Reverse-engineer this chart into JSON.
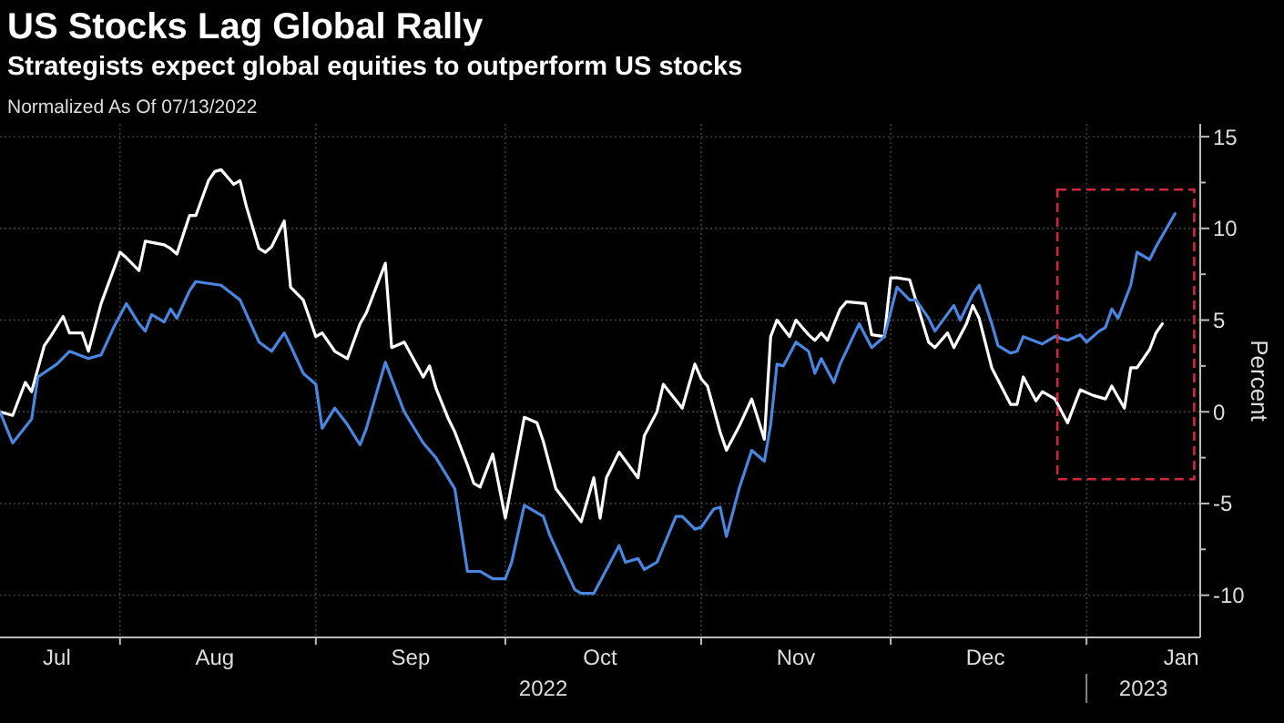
{
  "chart_data": {
    "type": "line",
    "title": "US Stocks Lag Global Rally",
    "subtitle": "Strategists expect global equities to outperform US stocks",
    "ylabel": "Percent",
    "annotations": [
      "Normalized As Of 07/13/2022",
      "2022",
      "2023"
    ],
    "xlim": [
      "2022-07-13",
      "2023-01-19"
    ],
    "xticks": [
      {
        "value": "2022-07-22",
        "label": "Jul"
      },
      {
        "value": "2022-08-01",
        "label": null
      },
      {
        "value": "2022-08-16",
        "label": "Aug"
      },
      {
        "value": "2022-09-01",
        "label": null
      },
      {
        "value": "2022-09-16",
        "label": "Sep"
      },
      {
        "value": "2022-10-01",
        "label": null
      },
      {
        "value": "2022-10-16",
        "label": "Oct"
      },
      {
        "value": "2022-11-01",
        "label": null
      },
      {
        "value": "2022-11-16",
        "label": "Nov"
      },
      {
        "value": "2022-12-01",
        "label": null
      },
      {
        "value": "2022-12-16",
        "label": "Dec"
      },
      {
        "value": "2023-01-01",
        "label": null
      },
      {
        "value": "2023-01-16",
        "label": "Jan"
      }
    ],
    "ylim": [
      -12.3,
      15.7
    ],
    "yticks": [
      -10,
      {
        "value": -7.5,
        "label": null
      },
      -5,
      {
        "value": -2.5,
        "label": null
      },
      0,
      {
        "value": 2.5,
        "label": null
      },
      5,
      {
        "value": 7.5,
        "label": null
      },
      10,
      {
        "value": 12.5,
        "label": null
      },
      15
    ],
    "grid": true,
    "line_style": "solid",
    "marker": "none",
    "series": [
      {
        "color": "#ffffff",
        "x": [
          "2022-07-13",
          "2022-07-15",
          "2022-07-17",
          "2022-07-18",
          "2022-07-20",
          "2022-07-21",
          "2022-07-23",
          "2022-07-24",
          "2022-07-26",
          "2022-07-27",
          "2022-07-29",
          "2022-08-01",
          "2022-08-02",
          "2022-08-04",
          "2022-08-05",
          "2022-08-08",
          "2022-08-09",
          "2022-08-10",
          "2022-08-12",
          "2022-08-13",
          "2022-08-15",
          "2022-08-16",
          "2022-08-17",
          "2022-08-19",
          "2022-08-20",
          "2022-08-21",
          "2022-08-23",
          "2022-08-24",
          "2022-08-25",
          "2022-08-27",
          "2022-08-28",
          "2022-08-30",
          "2022-09-01",
          "2022-09-02",
          "2022-09-04",
          "2022-09-06",
          "2022-09-08",
          "2022-09-09",
          "2022-09-12",
          "2022-09-13",
          "2022-09-15",
          "2022-09-18",
          "2022-09-19",
          "2022-09-20",
          "2022-09-22",
          "2022-09-23",
          "2022-09-25",
          "2022-09-26",
          "2022-09-27",
          "2022-09-29",
          "2022-10-01",
          "2022-10-04",
          "2022-10-06",
          "2022-10-07",
          "2022-10-09",
          "2022-10-13",
          "2022-10-15",
          "2022-10-16",
          "2022-10-17",
          "2022-10-19",
          "2022-10-22",
          "2022-10-23",
          "2022-10-25",
          "2022-10-26",
          "2022-10-29",
          "2022-10-31",
          "2022-11-01",
          "2022-11-02",
          "2022-11-04",
          "2022-11-05",
          "2022-11-07",
          "2022-11-09",
          "2022-11-11",
          "2022-11-12",
          "2022-11-13",
          "2022-11-15",
          "2022-11-16",
          "2022-11-18",
          "2022-11-19",
          "2022-11-20",
          "2022-11-21",
          "2022-11-23",
          "2022-11-24",
          "2022-11-27",
          "2022-11-28",
          "2022-11-30",
          "2022-12-01",
          "2022-12-02",
          "2022-12-04",
          "2022-12-07",
          "2022-12-08",
          "2022-12-10",
          "2022-12-11",
          "2022-12-13",
          "2022-12-14",
          "2022-12-15",
          "2022-12-17",
          "2022-12-20",
          "2022-12-21",
          "2022-12-22",
          "2022-12-24",
          "2022-12-25",
          "2022-12-27",
          "2022-12-29",
          "2022-12-31",
          "2023-01-02",
          "2023-01-04",
          "2023-01-05",
          "2023-01-07",
          "2023-01-08",
          "2023-01-09",
          "2023-01-11",
          "2023-01-12",
          "2023-01-13"
        ],
        "values": [
          0,
          -0.2,
          1.6,
          1.1,
          3.6,
          4.1,
          5.2,
          4.3,
          4.3,
          3.3,
          5.9,
          8.7,
          8.4,
          7.7,
          9.3,
          9.1,
          8.9,
          8.6,
          10.7,
          10.7,
          12.6,
          13.1,
          13.2,
          12.4,
          12.6,
          11.2,
          8.9,
          8.7,
          9.0,
          10.4,
          6.8,
          6.1,
          4.1,
          4.3,
          3.3,
          2.9,
          4.8,
          5.4,
          8.1,
          3.5,
          3.8,
          1.9,
          2.5,
          1.3,
          -0.4,
          -1.1,
          -2.9,
          -3.9,
          -4.1,
          -2.3,
          -5.8,
          -0.3,
          -0.6,
          -1.6,
          -4.2,
          -6.0,
          -3.6,
          -5.8,
          -3.6,
          -2.2,
          -3.6,
          -1.3,
          0,
          1.5,
          0.2,
          2.6,
          1.8,
          1.4,
          -1.1,
          -2.1,
          -0.8,
          0.7,
          -1.5,
          4.1,
          5.0,
          4.1,
          5.0,
          4.2,
          3.9,
          4.3,
          3.9,
          5.6,
          6.0,
          5.9,
          4.2,
          4.1,
          7.3,
          7.3,
          7.2,
          3.8,
          3.5,
          4.3,
          3.5,
          4.8,
          5.8,
          5.1,
          2.4,
          0.4,
          0.4,
          1.9,
          0.6,
          1.1,
          0.7,
          -0.6,
          1.2,
          0.9,
          0.7,
          1.4,
          0.2,
          2.4,
          2.4,
          3.4,
          4.3,
          4.8
        ]
      },
      {
        "color": "#4a86e0",
        "x": [
          "2022-07-13",
          "2022-07-15",
          "2022-07-18",
          "2022-07-19",
          "2022-07-22",
          "2022-07-24",
          "2022-07-27",
          "2022-07-29",
          "2022-07-31",
          "2022-08-02",
          "2022-08-04",
          "2022-08-05",
          "2022-08-06",
          "2022-08-08",
          "2022-08-09",
          "2022-08-10",
          "2022-08-12",
          "2022-08-13",
          "2022-08-17",
          "2022-08-20",
          "2022-08-23",
          "2022-08-25",
          "2022-08-27",
          "2022-08-28",
          "2022-08-30",
          "2022-09-01",
          "2022-09-02",
          "2022-09-04",
          "2022-09-06",
          "2022-09-08",
          "2022-09-09",
          "2022-09-12",
          "2022-09-15",
          "2022-09-18",
          "2022-09-20",
          "2022-09-23",
          "2022-09-25",
          "2022-09-27",
          "2022-09-29",
          "2022-10-01",
          "2022-10-02",
          "2022-10-04",
          "2022-10-07",
          "2022-10-08",
          "2022-10-12",
          "2022-10-13",
          "2022-10-15",
          "2022-10-19",
          "2022-10-20",
          "2022-10-22",
          "2022-10-23",
          "2022-10-25",
          "2022-10-28",
          "2022-10-29",
          "2022-10-31",
          "2022-11-01",
          "2022-11-03",
          "2022-11-04",
          "2022-11-05",
          "2022-11-07",
          "2022-11-09",
          "2022-11-11",
          "2022-11-12",
          "2022-11-13",
          "2022-11-14",
          "2022-11-16",
          "2022-11-18",
          "2022-11-19",
          "2022-11-20",
          "2022-11-22",
          "2022-11-23",
          "2022-11-26",
          "2022-11-28",
          "2022-11-30",
          "2022-12-02",
          "2022-12-04",
          "2022-12-05",
          "2022-12-07",
          "2022-12-08",
          "2022-12-11",
          "2022-12-12",
          "2022-12-14",
          "2022-12-15",
          "2022-12-17",
          "2022-12-18",
          "2022-12-20",
          "2022-12-21",
          "2022-12-22",
          "2022-12-25",
          "2022-12-27",
          "2022-12-29",
          "2022-12-31",
          "2023-01-01",
          "2023-01-03",
          "2023-01-04",
          "2023-01-05",
          "2023-01-06",
          "2023-01-08",
          "2023-01-09",
          "2023-01-11",
          "2023-01-12",
          "2023-01-15"
        ],
        "values": [
          0,
          -1.7,
          -0.4,
          1.9,
          2.6,
          3.3,
          2.9,
          3.1,
          4.6,
          5.9,
          4.8,
          4.4,
          5.3,
          4.9,
          5.6,
          5.1,
          6.6,
          7.1,
          6.9,
          6.1,
          3.8,
          3.3,
          4.3,
          3.6,
          2.1,
          1.5,
          -0.9,
          0.2,
          -0.7,
          -1.8,
          -0.9,
          2.7,
          0,
          -1.7,
          -2.5,
          -4.2,
          -8.7,
          -8.7,
          -9.1,
          -9.1,
          -8.2,
          -5.1,
          -5.7,
          -6.7,
          -9.7,
          -9.9,
          -9.9,
          -7.3,
          -8.2,
          -8.0,
          -8.6,
          -8.2,
          -5.7,
          -5.7,
          -6.4,
          -6.3,
          -5.3,
          -5.2,
          -6.8,
          -4.2,
          -2.1,
          -2.7,
          -0.7,
          2.6,
          2.5,
          3.8,
          3.3,
          2.1,
          2.9,
          1.6,
          2.6,
          4.8,
          3.5,
          4.1,
          6.8,
          6.1,
          6.1,
          5.1,
          4.4,
          5.8,
          5.0,
          6.4,
          6.9,
          4.8,
          3.6,
          3.2,
          3.3,
          4.1,
          3.7,
          4.1,
          3.9,
          4.2,
          3.8,
          4.4,
          4.6,
          5.6,
          5.1,
          6.9,
          8.7,
          8.3,
          9.0,
          10.8
        ]
      }
    ]
  }
}
